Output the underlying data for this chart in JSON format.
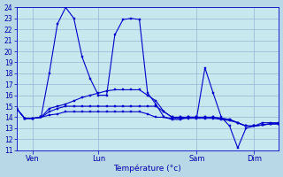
{
  "background_color": "#b8d8e8",
  "plot_bg_color": "#c8e8f0",
  "grid_color": "#8aaacc",
  "line_color": "#0000cc",
  "marker_color": "#0000cc",
  "ylim": [
    11,
    24
  ],
  "yticks": [
    11,
    12,
    13,
    14,
    15,
    16,
    17,
    18,
    19,
    20,
    21,
    22,
    23,
    24
  ],
  "xlabel": "Température (°c)",
  "xlabel_color": "#0000aa",
  "tick_label_color": "#0000aa",
  "xtick_labels": [
    "Ven",
    "Lun",
    "Sam",
    "Dim"
  ],
  "xtick_positions": [
    2,
    10,
    22,
    29
  ],
  "n_points": 33,
  "series": [
    [
      14.8,
      13.9,
      13.9,
      14.0,
      18.0,
      22.5,
      24.0,
      23.0,
      19.5,
      17.5,
      16.0,
      16.0,
      21.5,
      22.9,
      23.0,
      22.9,
      16.2,
      15.2,
      14.0,
      13.8,
      13.8,
      14.0,
      14.0,
      18.5,
      16.2,
      14.0,
      13.2,
      11.2,
      13.0,
      13.2,
      13.5,
      13.5,
      13.5
    ],
    [
      14.8,
      13.9,
      13.9,
      14.0,
      14.8,
      15.0,
      15.2,
      15.5,
      15.8,
      16.0,
      16.2,
      16.4,
      16.5,
      16.5,
      16.5,
      16.5,
      16.0,
      15.5,
      14.5,
      14.0,
      14.0,
      14.0,
      14.0,
      14.0,
      14.0,
      13.9,
      13.8,
      13.5,
      13.2,
      13.2,
      13.3,
      13.4,
      13.4
    ],
    [
      14.8,
      13.9,
      13.9,
      14.0,
      14.5,
      14.8,
      15.0,
      15.0,
      15.0,
      15.0,
      15.0,
      15.0,
      15.0,
      15.0,
      15.0,
      15.0,
      15.0,
      15.0,
      14.5,
      14.0,
      14.0,
      14.0,
      14.0,
      14.0,
      14.0,
      13.9,
      13.8,
      13.5,
      13.2,
      13.2,
      13.3,
      13.4,
      13.4
    ],
    [
      14.8,
      13.9,
      13.9,
      14.0,
      14.2,
      14.3,
      14.5,
      14.5,
      14.5,
      14.5,
      14.5,
      14.5,
      14.5,
      14.5,
      14.5,
      14.5,
      14.3,
      14.0,
      14.0,
      13.9,
      13.9,
      13.9,
      13.9,
      13.9,
      13.9,
      13.8,
      13.7,
      13.5,
      13.2,
      13.2,
      13.3,
      13.4,
      13.4
    ]
  ],
  "ytick_fontsize": 5.5,
  "xtick_fontsize": 6,
  "xlabel_fontsize": 6.5,
  "linewidth": 0.8,
  "markersize": 1.8
}
